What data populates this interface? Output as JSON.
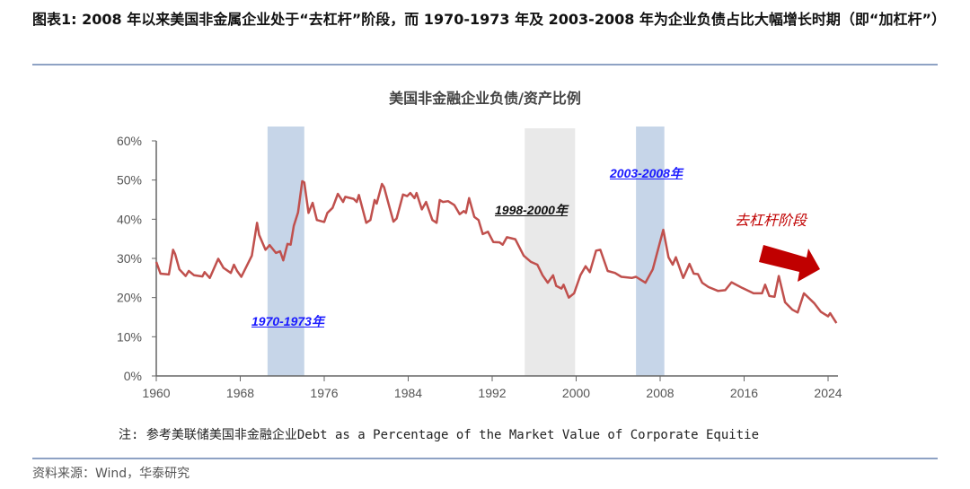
{
  "header": {
    "title": "图表1:  2008 年以来美国非金属企业处于“去杠杆”阶段，而 1970-1973 年及 2003-2008 年为企业负债占比大幅增长时期（即“加杠杆”）"
  },
  "footer": {
    "note": "注: 参考美联储美国非金融企业Debt as a Percentage of the Market Value of Corporate Equitie",
    "source": "资料来源：Wind，华泰研究"
  },
  "colors": {
    "line": "#c0504d",
    "blue_band": "#c6d5e8",
    "gray_band": "#e9e9e9",
    "arrow": "#c00000",
    "rule": "#8ea2c4"
  },
  "chart_data": {
    "type": "line",
    "title": "美国非金融企业负债/资产比例",
    "xlim": [
      1960,
      2025
    ],
    "ylim": [
      0,
      60
    ],
    "x_ticks": [
      "1960",
      "1968",
      "1976",
      "1984",
      "1992",
      "2000",
      "2008",
      "2016",
      "2024"
    ],
    "y_ticks": [
      "0%",
      "10%",
      "20%",
      "30%",
      "40%",
      "50%",
      "60%"
    ],
    "grid": false,
    "shaded_periods": [
      {
        "start": 1970.6,
        "end": 1974.1,
        "color": "blue",
        "label": "1970-1973年"
      },
      {
        "start": 1995.1,
        "end": 1999.9,
        "color": "gray",
        "label": "1998-2000年"
      },
      {
        "start": 2005.7,
        "end": 2008.4,
        "color": "blue",
        "label": "2003-2008年"
      }
    ],
    "annotations": [
      {
        "text": "去杠杆阶段",
        "arrow": "down-right"
      }
    ],
    "series": [
      {
        "x": [
          1960,
          1960.4,
          1961.2,
          1961.6,
          1961.8,
          1962.2,
          1962.8,
          1963.1,
          1963.6,
          1964.4,
          1964.6,
          1965.1,
          1965.9,
          1966.4,
          1967.1,
          1967.4,
          1967.7,
          1968.1,
          1969.1,
          1969.6,
          1969.8,
          1970.4,
          1970.8,
          1971.4,
          1971.8,
          1972.1,
          1972.5,
          1972.8,
          1973.1,
          1973.5,
          1973.9,
          1974.1,
          1974.5,
          1974.9,
          1975.3,
          1976.0,
          1976.3,
          1976.8,
          1977.3,
          1977.8,
          1978.0,
          1978.8,
          1979.1,
          1979.3,
          1980.0,
          1980.4,
          1980.8,
          1981.0,
          1981.5,
          1981.7,
          1982.2,
          1982.6,
          1982.9,
          1983.5,
          1983.9,
          1984.2,
          1984.6,
          1984.8,
          1985.3,
          1985.7,
          1986.3,
          1986.7,
          1987.0,
          1987.3,
          1987.8,
          1988.4,
          1988.9,
          1989.3,
          1989.5,
          1989.8,
          1990.3,
          1990.7,
          1991.1,
          1991.6,
          1992.1,
          1992.7,
          1993.0,
          1993.4,
          1994.2,
          1995.0,
          1995.7,
          1996.3,
          1996.8,
          1997.3,
          1997.8,
          1998.1,
          1998.6,
          1998.8,
          1999.3,
          1999.8,
          2000.4,
          2000.9,
          2001.3,
          2001.9,
          2002.3,
          2003.0,
          2003.7,
          2004.3,
          2005.3,
          2005.7,
          2006.6,
          2007.3,
          2008.3,
          2008.8,
          2009.2,
          2009.5,
          2010.2,
          2010.8,
          2011.2,
          2011.6,
          2012.0,
          2012.6,
          2013.5,
          2014.2,
          2014.8,
          2015.8,
          2016.9,
          2017.7,
          2018.0,
          2018.4,
          2018.9,
          2019.3,
          2019.9,
          2020.6,
          2021.1,
          2021.7,
          2022.7,
          2023.3,
          2024.0,
          2024.2,
          2024.8
        ],
        "y": [
          29.1,
          26.1,
          25.9,
          32.2,
          31.1,
          27.2,
          25.5,
          26.8,
          25.7,
          25.4,
          26.5,
          25.0,
          29.9,
          27.6,
          26.3,
          28.4,
          26.8,
          25.3,
          30.7,
          39.1,
          36.0,
          32.2,
          33.4,
          31.4,
          31.8,
          29.5,
          33.7,
          33.5,
          38.3,
          41.7,
          49.7,
          49.4,
          41.6,
          44.2,
          39.8,
          39.3,
          41.6,
          42.9,
          46.5,
          44.4,
          45.7,
          45.2,
          44.4,
          46.2,
          39.1,
          39.8,
          44.9,
          44.0,
          49.0,
          48.2,
          43.2,
          39.4,
          40.2,
          46.3,
          45.9,
          46.7,
          45.4,
          46.7,
          42.5,
          44.4,
          39.8,
          39.1,
          44.9,
          44.4,
          44.6,
          43.6,
          41.3,
          42.1,
          41.6,
          45.4,
          40.6,
          39.8,
          36.2,
          36.8,
          34.2,
          34.1,
          33.5,
          35.4,
          34.9,
          30.7,
          29.1,
          28.4,
          25.7,
          23.8,
          25.7,
          23.0,
          22.3,
          23.3,
          20.0,
          21.1,
          25.7,
          28.0,
          26.5,
          32.0,
          32.2,
          26.8,
          26.3,
          25.3,
          25.0,
          25.3,
          23.8,
          27.2,
          37.3,
          30.3,
          28.4,
          30.3,
          25.0,
          28.6,
          26.1,
          26.0,
          23.8,
          22.7,
          21.7,
          21.9,
          23.9,
          22.5,
          21.1,
          21.1,
          23.3,
          20.4,
          20.2,
          25.5,
          18.8,
          16.9,
          16.2,
          21.1,
          18.5,
          16.4,
          15.2,
          16.0,
          13.5
        ]
      }
    ]
  }
}
